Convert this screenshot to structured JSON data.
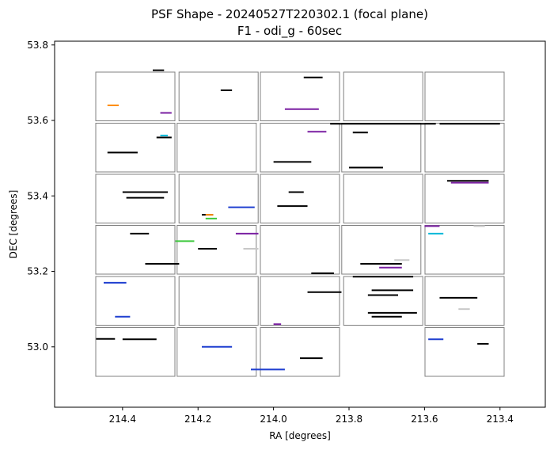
{
  "chart_data": {
    "type": "scatter",
    "title": "PSF Shape - 20240527T220302.1 (focal plane)",
    "subtitle": "F1 - odi_g - 60sec",
    "xlabel": "RA [degrees]",
    "ylabel": "DEC [degrees]",
    "xlim": [
      214.58,
      213.28
    ],
    "ylim": [
      52.84,
      53.81
    ],
    "x_inverted": true,
    "grid": false,
    "x_ticks": [
      214.4,
      214.2,
      214.0,
      213.8,
      213.6,
      213.4
    ],
    "x_tick_labels": [
      "214.4",
      "214.2",
      "214.0",
      "213.8",
      "213.6",
      "213.4"
    ],
    "y_ticks": [
      53.0,
      53.2,
      53.4,
      53.6,
      53.8
    ],
    "y_tick_labels": [
      "53.0",
      "53.2",
      "53.4",
      "53.6",
      "53.8"
    ],
    "ota_grid": {
      "columns": 5,
      "rows": 6,
      "missing_cells": [
        [
          6,
          4
        ]
      ],
      "outline_color": "#808080"
    },
    "series": [
      {
        "color": "#000000",
        "segments": [
          [
            214.32,
            53.733,
            214.29,
            53.733
          ],
          [
            214.27,
            53.555,
            214.31,
            53.555
          ],
          [
            214.44,
            53.515,
            214.36,
            53.515
          ],
          [
            214.39,
            53.395,
            214.29,
            53.395
          ],
          [
            214.4,
            53.41,
            214.28,
            53.41
          ],
          [
            214.38,
            53.3,
            214.33,
            53.3
          ],
          [
            214.34,
            53.22,
            214.25,
            53.22
          ],
          [
            214.47,
            53.021,
            214.42,
            53.021
          ],
          [
            214.4,
            53.02,
            214.31,
            53.02
          ],
          [
            214.14,
            53.68,
            214.11,
            53.68
          ],
          [
            214.19,
            53.35,
            214.16,
            53.35
          ],
          [
            214.2,
            53.26,
            214.15,
            53.26
          ],
          [
            213.92,
            53.714,
            213.87,
            53.714
          ],
          [
            214.0,
            53.49,
            213.9,
            53.49
          ],
          [
            213.96,
            53.41,
            213.92,
            53.41
          ],
          [
            213.99,
            53.373,
            213.91,
            53.373
          ],
          [
            213.9,
            53.195,
            213.84,
            53.195
          ],
          [
            213.91,
            53.145,
            213.82,
            53.145
          ],
          [
            213.93,
            52.97,
            213.87,
            52.97
          ],
          [
            213.85,
            53.591,
            213.57,
            53.591
          ],
          [
            213.79,
            53.568,
            213.75,
            53.568
          ],
          [
            213.8,
            53.475,
            213.71,
            53.475
          ],
          [
            213.77,
            53.22,
            213.66,
            53.22
          ],
          [
            213.79,
            53.186,
            213.63,
            53.186
          ],
          [
            213.74,
            53.15,
            213.63,
            53.15
          ],
          [
            213.75,
            53.137,
            213.67,
            53.137
          ],
          [
            213.75,
            53.09,
            213.62,
            53.09
          ],
          [
            213.74,
            53.08,
            213.66,
            53.08
          ],
          [
            213.56,
            53.591,
            213.4,
            53.591
          ],
          [
            213.54,
            53.44,
            213.43,
            53.44
          ],
          [
            213.56,
            53.13,
            213.46,
            53.13
          ],
          [
            213.46,
            53.008,
            213.43,
            53.008
          ]
        ]
      },
      {
        "color": "#7a1fa2",
        "segments": [
          [
            214.1,
            53.3,
            214.04,
            53.3
          ],
          [
            213.97,
            53.63,
            213.88,
            53.63
          ],
          [
            213.91,
            53.57,
            213.86,
            53.57
          ],
          [
            213.72,
            53.21,
            213.66,
            53.21
          ],
          [
            213.6,
            53.32,
            213.56,
            53.32
          ],
          [
            213.53,
            53.435,
            213.43,
            53.435
          ],
          [
            214.0,
            53.06,
            213.98,
            53.06
          ],
          [
            214.3,
            53.62,
            214.27,
            53.62
          ]
        ]
      },
      {
        "color": "#1f3fd0",
        "segments": [
          [
            214.45,
            53.17,
            214.39,
            53.17
          ],
          [
            214.42,
            53.08,
            214.38,
            53.08
          ],
          [
            214.19,
            53.0,
            214.11,
            53.0
          ],
          [
            214.06,
            52.94,
            213.97,
            52.94
          ],
          [
            214.12,
            53.37,
            214.05,
            53.37
          ],
          [
            213.59,
            53.02,
            213.55,
            53.02
          ]
        ]
      },
      {
        "color": "#3cc83c",
        "segments": [
          [
            214.26,
            53.28,
            214.21,
            53.28
          ],
          [
            214.18,
            53.34,
            214.15,
            53.34
          ]
        ]
      },
      {
        "color": "#ff8c00",
        "segments": [
          [
            214.44,
            53.64,
            214.41,
            53.64
          ],
          [
            214.18,
            53.35,
            214.16,
            53.35
          ]
        ]
      },
      {
        "color": "#00b8d8",
        "segments": [
          [
            214.3,
            53.56,
            214.28,
            53.56
          ],
          [
            213.59,
            53.3,
            213.55,
            53.3
          ]
        ]
      },
      {
        "color": "#c8c8c8",
        "segments": [
          [
            214.08,
            53.26,
            214.04,
            53.26
          ],
          [
            213.47,
            53.32,
            213.44,
            53.32
          ],
          [
            213.68,
            53.23,
            213.64,
            53.23
          ],
          [
            213.51,
            53.1,
            213.48,
            53.1
          ]
        ]
      }
    ]
  }
}
